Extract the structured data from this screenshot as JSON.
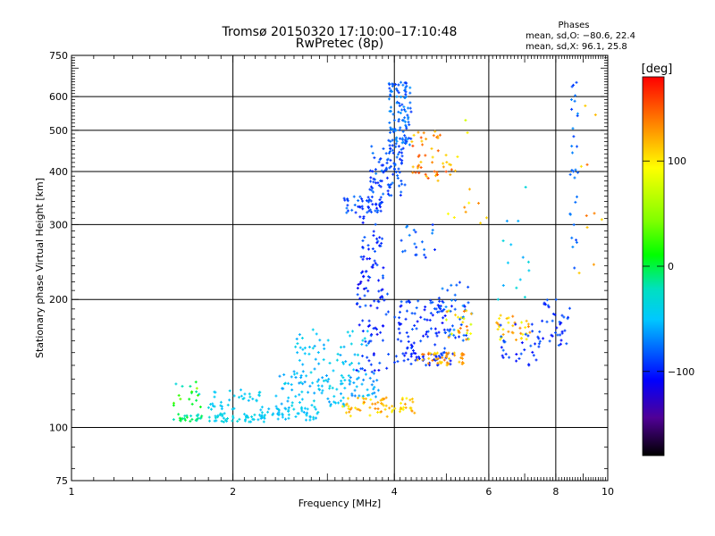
{
  "title_line1": "Tromsø 20150320 17:10:00–17:10:48",
  "title_line2": "RwPretec (8p)",
  "phase_info": {
    "heading": "Phases",
    "line_o": "mean, sd,O: −80.6, 22.4",
    "line_x": "mean, sd,X:  96.1, 25.8"
  },
  "colorbar": {
    "unit_label": "[deg]",
    "ticks": [
      100,
      0,
      -100
    ],
    "range": [
      -180,
      180
    ]
  },
  "chart_data": {
    "type": "scatter",
    "xlabel": "Frequency [MHz]",
    "ylabel": "Stationary phase Virtual Height [km]",
    "xscale": "log",
    "yscale": "log",
    "xlim": [
      1,
      10
    ],
    "ylim": [
      75,
      750
    ],
    "x_ticks": [
      1,
      2,
      4,
      6,
      8,
      10
    ],
    "y_ticks": [
      75,
      100,
      200,
      300,
      400,
      500,
      600,
      750
    ],
    "x_grid": [
      2,
      4,
      6,
      8
    ],
    "y_grid": [
      100,
      200,
      300,
      400,
      500,
      600
    ],
    "grid": true,
    "color_encodes": "phase [deg]",
    "clusters": [
      {
        "x0": 1.55,
        "x1": 1.75,
        "y0": 103,
        "y1": 108,
        "phase": [
          -20,
          20
        ],
        "n": 25
      },
      {
        "x0": 1.55,
        "x1": 1.75,
        "y0": 108,
        "y1": 128,
        "phase": [
          -30,
          60
        ],
        "n": 18
      },
      {
        "x0": 1.75,
        "x1": 2.3,
        "y0": 103,
        "y1": 108,
        "phase": [
          -40,
          -20
        ],
        "n": 45
      },
      {
        "x0": 1.8,
        "x1": 2.25,
        "y0": 110,
        "y1": 124,
        "phase": [
          -45,
          -25
        ],
        "n": 35
      },
      {
        "x0": 2.25,
        "x1": 2.9,
        "y0": 104,
        "y1": 112,
        "phase": [
          -50,
          -25
        ],
        "n": 55
      },
      {
        "x0": 2.4,
        "x1": 3.3,
        "y0": 112,
        "y1": 135,
        "phase": [
          -60,
          -25
        ],
        "n": 80
      },
      {
        "x0": 2.6,
        "x1": 3.6,
        "y0": 135,
        "y1": 170,
        "phase": [
          -55,
          -25
        ],
        "n": 55
      },
      {
        "x0": 3.2,
        "x1": 4.4,
        "y0": 106,
        "y1": 118,
        "phase": [
          100,
          140
        ],
        "n": 70
      },
      {
        "x0": 3.3,
        "x1": 3.75,
        "y0": 118,
        "y1": 135,
        "phase": [
          -70,
          -40
        ],
        "n": 30
      },
      {
        "x0": 3.4,
        "x1": 3.9,
        "y0": 135,
        "y1": 240,
        "phase": [
          -130,
          -80
        ],
        "n": 80
      },
      {
        "x0": 3.45,
        "x1": 3.8,
        "y0": 240,
        "y1": 340,
        "phase": [
          -120,
          -80
        ],
        "n": 40
      },
      {
        "x0": 3.2,
        "x1": 3.8,
        "y0": 320,
        "y1": 350,
        "phase": [
          -110,
          -70
        ],
        "n": 45
      },
      {
        "x0": 3.6,
        "x1": 4.2,
        "y0": 350,
        "y1": 460,
        "phase": [
          -110,
          -70
        ],
        "n": 90
      },
      {
        "x0": 3.9,
        "x1": 4.3,
        "y0": 460,
        "y1": 650,
        "phase": [
          -100,
          -60
        ],
        "n": 110
      },
      {
        "x0": 4.0,
        "x1": 5.0,
        "y0": 140,
        "y1": 200,
        "phase": [
          -120,
          -80
        ],
        "n": 90
      },
      {
        "x0": 4.0,
        "x1": 5.2,
        "y0": 140,
        "y1": 150,
        "phase": [
          -120,
          -90
        ],
        "n": 35
      },
      {
        "x0": 4.4,
        "x1": 5.4,
        "y0": 140,
        "y1": 150,
        "phase": [
          110,
          150
        ],
        "n": 45
      },
      {
        "x0": 4.8,
        "x1": 5.6,
        "y0": 160,
        "y1": 220,
        "phase": [
          -110,
          -60
        ],
        "n": 45
      },
      {
        "x0": 5.0,
        "x1": 5.6,
        "y0": 160,
        "y1": 190,
        "phase": [
          80,
          150
        ],
        "n": 25
      },
      {
        "x0": 4.3,
        "x1": 5.2,
        "y0": 380,
        "y1": 500,
        "phase": [
          110,
          160
        ],
        "n": 50
      },
      {
        "x0": 4.1,
        "x1": 4.8,
        "y0": 240,
        "y1": 300,
        "phase": [
          -110,
          -60
        ],
        "n": 20
      },
      {
        "x0": 6.2,
        "x1": 7.2,
        "y0": 160,
        "y1": 185,
        "phase": [
          90,
          140
        ],
        "n": 35
      },
      {
        "x0": 6.2,
        "x1": 7.5,
        "y0": 140,
        "y1": 175,
        "phase": [
          -120,
          -80
        ],
        "n": 35
      },
      {
        "x0": 7.5,
        "x1": 8.5,
        "y0": 155,
        "y1": 200,
        "phase": [
          -120,
          -80
        ],
        "n": 35
      },
      {
        "x0": 8.5,
        "x1": 8.8,
        "y0": 230,
        "y1": 650,
        "phase": [
          -100,
          -60
        ],
        "n": 30
      },
      {
        "x0": 5.0,
        "x1": 6.0,
        "y0": 300,
        "y1": 550,
        "phase": [
          80,
          140
        ],
        "n": 12
      },
      {
        "x0": 6.2,
        "x1": 7.2,
        "y0": 190,
        "y1": 380,
        "phase": [
          -60,
          -20
        ],
        "n": 14
      },
      {
        "x0": 8.8,
        "x1": 9.8,
        "y0": 200,
        "y1": 650,
        "phase": [
          110,
          150
        ],
        "n": 10
      }
    ]
  }
}
